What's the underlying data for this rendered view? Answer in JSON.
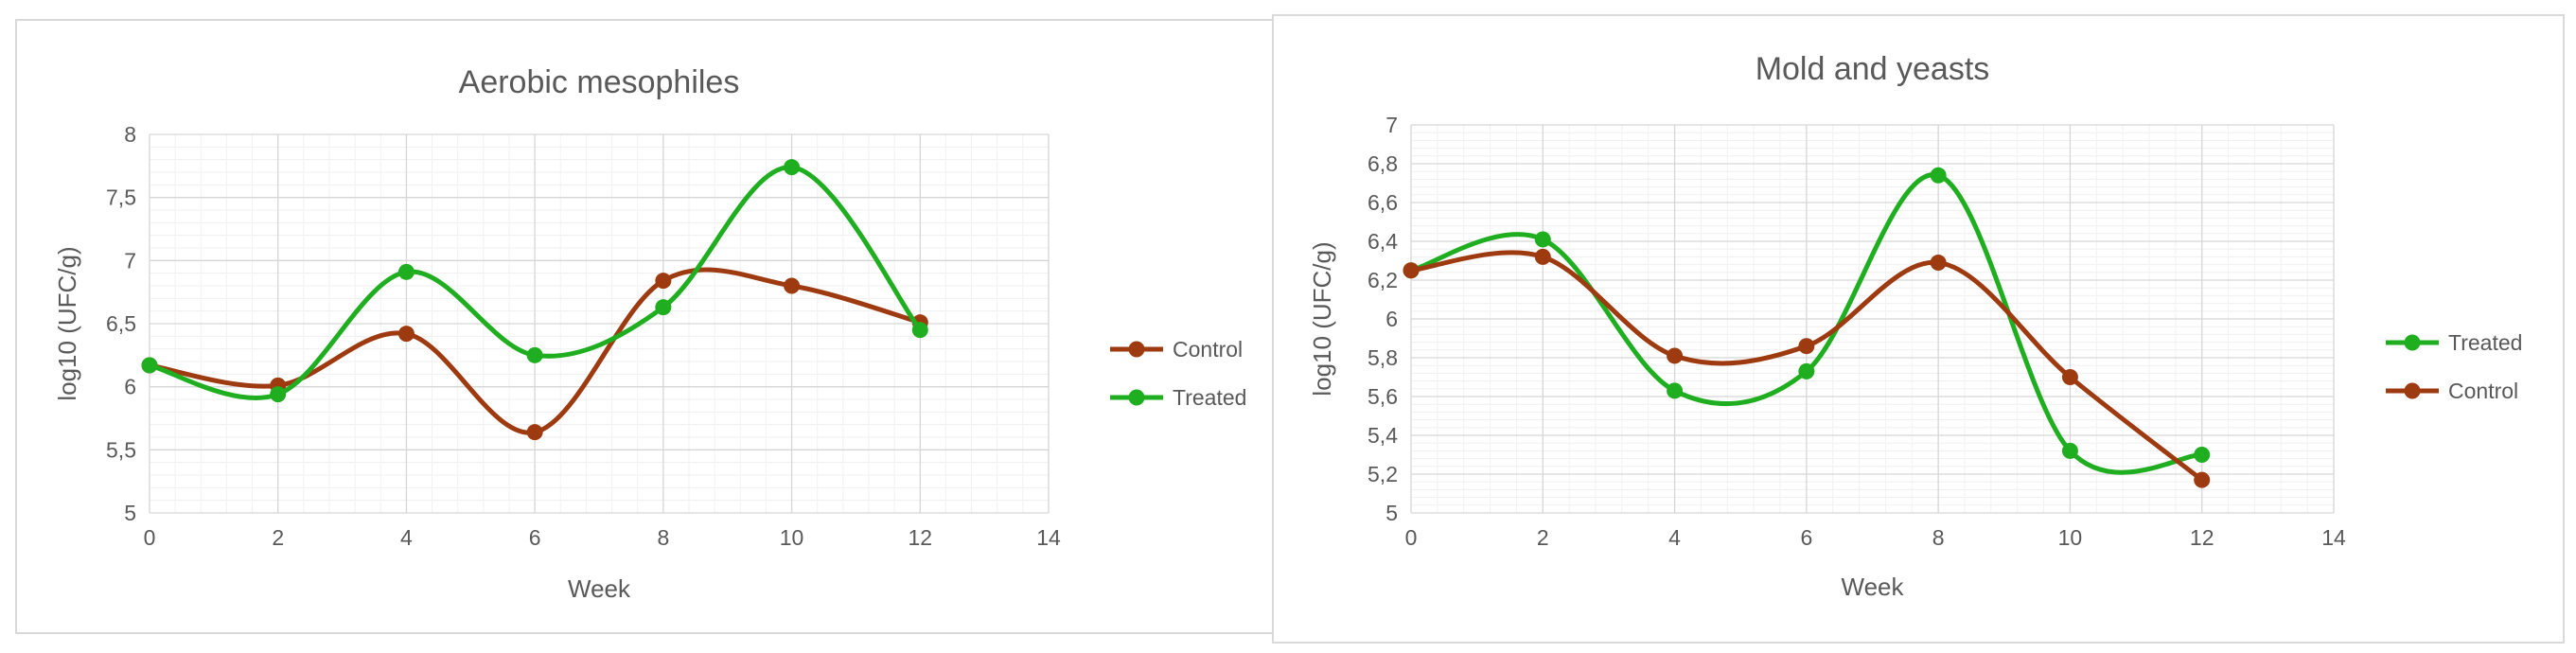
{
  "chart_data": [
    {
      "type": "line",
      "title": "Aerobic mesophiles",
      "xlabel": "Week",
      "ylabel": "log10 (UFC/g)",
      "xlim": [
        0,
        14
      ],
      "ylim": [
        5,
        8
      ],
      "xticks": [
        0,
        2,
        4,
        6,
        8,
        10,
        12,
        14
      ],
      "yticks": [
        "5",
        "5,5",
        "6",
        "6,5",
        "7",
        "7,5",
        "8"
      ],
      "grid": true,
      "smooth": true,
      "legend_position": "right",
      "series": [
        {
          "name": "Control",
          "color": "#9e3a10",
          "x": [
            0,
            2,
            4,
            6,
            8,
            10,
            12
          ],
          "y": [
            6.17,
            6.01,
            6.42,
            5.64,
            6.84,
            6.8,
            6.51
          ]
        },
        {
          "name": "Treated",
          "color": "#1fae1f",
          "x": [
            0,
            2,
            4,
            6,
            8,
            10,
            12
          ],
          "y": [
            6.17,
            5.94,
            6.91,
            6.25,
            6.63,
            7.74,
            6.45
          ]
        }
      ]
    },
    {
      "type": "line",
      "title": "Mold and yeasts",
      "xlabel": "Week",
      "ylabel": "log10 (UFC/g)",
      "xlim": [
        0,
        14
      ],
      "ylim": [
        5,
        7
      ],
      "xticks": [
        0,
        2,
        4,
        6,
        8,
        10,
        12,
        14
      ],
      "yticks": [
        "5",
        "5,2",
        "5,4",
        "5,6",
        "5,8",
        "6",
        "6,2",
        "6,4",
        "6,6",
        "6,8",
        "7"
      ],
      "grid": true,
      "smooth": true,
      "legend_position": "right",
      "series": [
        {
          "name": "Treated",
          "color": "#1fae1f",
          "x": [
            0,
            2,
            4,
            6,
            8,
            10,
            12
          ],
          "y": [
            6.25,
            6.41,
            5.63,
            5.73,
            6.74,
            5.32,
            5.3
          ]
        },
        {
          "name": "Control",
          "color": "#9e3a10",
          "x": [
            0,
            2,
            4,
            6,
            8,
            10,
            12
          ],
          "y": [
            6.25,
            6.32,
            5.81,
            5.86,
            6.29,
            5.7,
            5.17
          ]
        }
      ]
    }
  ]
}
